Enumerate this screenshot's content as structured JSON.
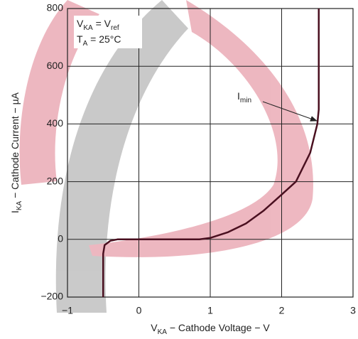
{
  "chart_data": {
    "type": "line",
    "annotation_lines": [
      [
        "V",
        "KA",
        " = V",
        "ref"
      ],
      [
        "T",
        "A",
        " = 25°C"
      ]
    ],
    "pointer_label": [
      "I",
      "min"
    ],
    "x_label": [
      "V",
      "KA",
      " − Cathode Voltage − V"
    ],
    "y_label": [
      "I",
      "KA",
      " − Cathode Current − µA"
    ],
    "x": [
      -0.5,
      -0.5,
      -0.48,
      -0.4,
      -0.3,
      0,
      0.5,
      0.85,
      1.0,
      1.25,
      1.5,
      1.75,
      2.0,
      2.2,
      2.4,
      2.5,
      2.52,
      2.52
    ],
    "series": [
      {
        "color": "#4a1020",
        "values": [
          -200,
          -50,
          -20,
          -5,
          0,
          0,
          0,
          0,
          5,
          25,
          55,
          100,
          155,
          200,
          300,
          400,
          450,
          800
        ]
      }
    ],
    "xlim": [
      -1,
      3
    ],
    "xticks": [
      {
        "value": -1,
        "label": "−1"
      },
      0,
      1,
      2,
      3
    ],
    "ylim": [
      -200,
      800
    ],
    "yticks": [
      {
        "value": -200,
        "label": "−200"
      },
      0,
      200,
      400,
      600,
      800
    ],
    "grid": true
  }
}
